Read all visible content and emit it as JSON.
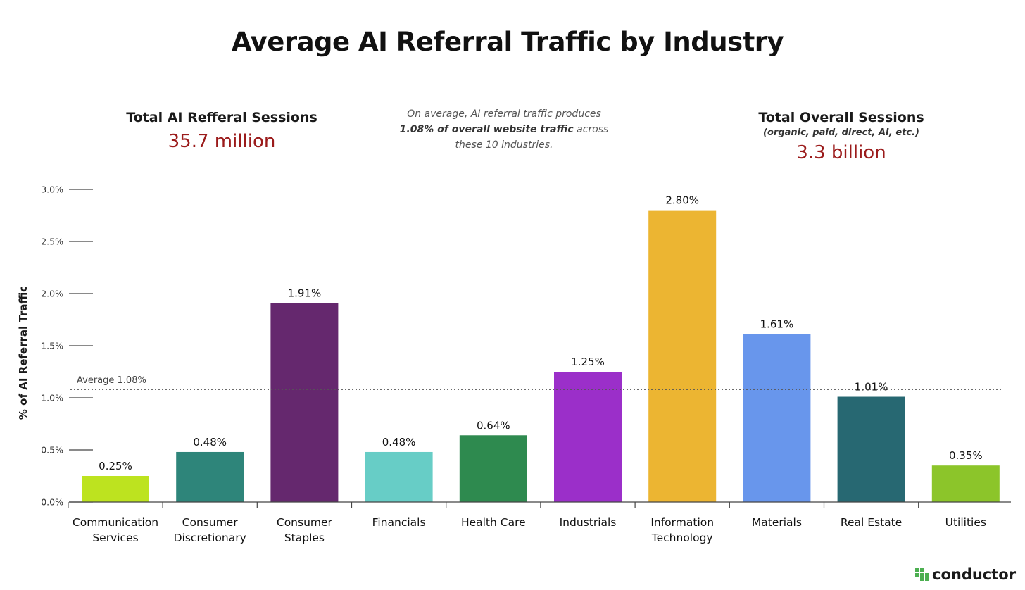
{
  "title": "Average AI Referral Traffic by Industry",
  "stats": {
    "left": {
      "label": "Total AI Refferal Sessions",
      "value": "35.7 million"
    },
    "note": {
      "pre": "On average, AI referral traffic produces ",
      "bold": "1.08% of overall website traffic",
      "post": " across these 10 industries."
    },
    "right": {
      "label": "Total Overall Sessions",
      "sublabel": "(organic, paid, direct, AI, etc.)",
      "value": "3.3 billion"
    }
  },
  "brand": {
    "name": "conductor",
    "color": "#4caf50"
  },
  "chart_data": {
    "type": "bar",
    "ylabel": "% of AI Referral Traffic",
    "ylim": [
      0,
      3.0
    ],
    "yticks": [
      {
        "value": 0,
        "label": "0.0%"
      },
      {
        "value": 0.5,
        "label": "0.5%"
      },
      {
        "value": 1.0,
        "label": "1.0%"
      },
      {
        "value": 1.5,
        "label": "1.5%"
      },
      {
        "value": 2.0,
        "label": "2.0%"
      },
      {
        "value": 2.5,
        "label": "2.5%"
      },
      {
        "value": 3.0,
        "label": "3.0%"
      }
    ],
    "average": {
      "value": 1.08,
      "label": "Average 1.08%"
    },
    "bars": [
      {
        "category": [
          "Communication",
          "Services"
        ],
        "value": 0.25,
        "label": "0.25%",
        "color": "#bde31f"
      },
      {
        "category": [
          "Consumer",
          "Discretionary"
        ],
        "value": 0.48,
        "label": "0.48%",
        "color": "#2e857a"
      },
      {
        "category": [
          "Consumer",
          "Staples"
        ],
        "value": 1.91,
        "label": "1.91%",
        "color": "#65286e"
      },
      {
        "category": [
          "Financials"
        ],
        "value": 0.48,
        "label": "0.48%",
        "color": "#67cdc6"
      },
      {
        "category": [
          "Health Care"
        ],
        "value": 0.64,
        "label": "0.64%",
        "color": "#2e8a4f"
      },
      {
        "category": [
          "Industrials"
        ],
        "value": 1.25,
        "label": "1.25%",
        "color": "#9b2fc9"
      },
      {
        "category": [
          "Information",
          "Technology"
        ],
        "value": 2.8,
        "label": "2.80%",
        "color": "#ecb532"
      },
      {
        "category": [
          "Materials"
        ],
        "value": 1.61,
        "label": "1.61%",
        "color": "#6896ec"
      },
      {
        "category": [
          "Real Estate"
        ],
        "value": 1.01,
        "label": "1.01%",
        "color": "#276872"
      },
      {
        "category": [
          "Utilities"
        ],
        "value": 0.35,
        "label": "0.35%",
        "color": "#8cc52a"
      }
    ]
  }
}
